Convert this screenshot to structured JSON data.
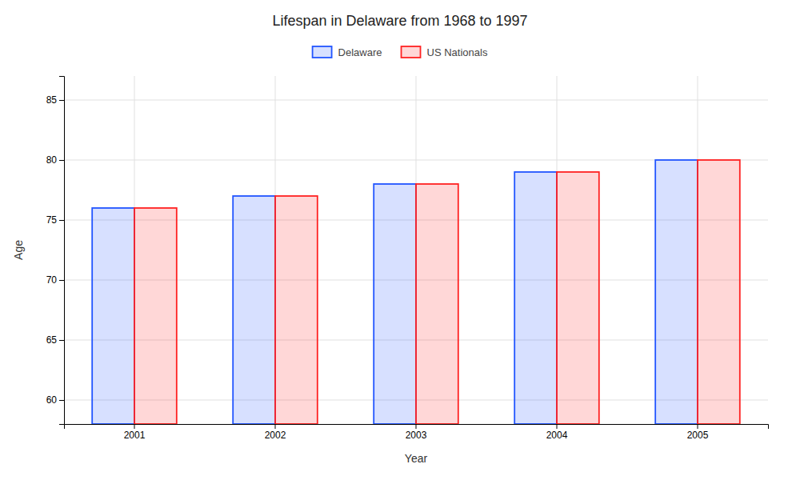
{
  "chart_data": {
    "type": "bar",
    "title": "Lifespan in Delaware from 1968 to 1997",
    "xlabel": "Year",
    "ylabel": "Age",
    "categories": [
      "2001",
      "2002",
      "2003",
      "2004",
      "2005"
    ],
    "series": [
      {
        "name": "Delaware",
        "color": "#2255ff",
        "values": [
          76,
          77,
          78,
          79,
          80
        ]
      },
      {
        "name": "US Nationals",
        "color": "#ff2222",
        "values": [
          76,
          77,
          78,
          79,
          80
        ]
      }
    ],
    "ylim": [
      58,
      87
    ],
    "yticks": [
      60,
      65,
      70,
      75,
      80,
      85
    ],
    "grid": true,
    "legend": "top"
  }
}
